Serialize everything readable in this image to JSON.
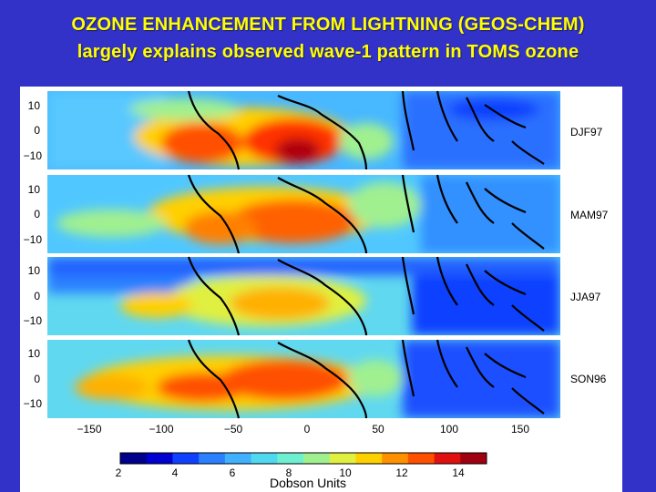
{
  "slide": {
    "title_line1": "OZONE ENHANCEMENT FROM LIGHTNING (GEOS-CHEM)",
    "title_line2": "largely explains observed wave-1 pattern in TOMS ozone"
  },
  "figure": {
    "panels": [
      {
        "label": "DJF97"
      },
      {
        "label": "MAM97"
      },
      {
        "label": "JJA97"
      },
      {
        "label": "SON96"
      }
    ],
    "lat_ticks": [
      "10",
      "0",
      "−10"
    ],
    "lon_ticks": [
      "−150",
      "−100",
      "−50",
      "0",
      "50",
      "100",
      "150"
    ],
    "colorbar": {
      "ticks": [
        "2",
        "4",
        "6",
        "8",
        "10",
        "12",
        "14"
      ],
      "label": "Dobson Units",
      "colors": [
        "#00008c",
        "#0000d0",
        "#1040ff",
        "#2a80ff",
        "#40b0ff",
        "#50d8f0",
        "#6ef0d0",
        "#a0f090",
        "#e0f040",
        "#ffd000",
        "#ff9000",
        "#ff5000",
        "#e01010",
        "#a00010"
      ]
    }
  }
}
